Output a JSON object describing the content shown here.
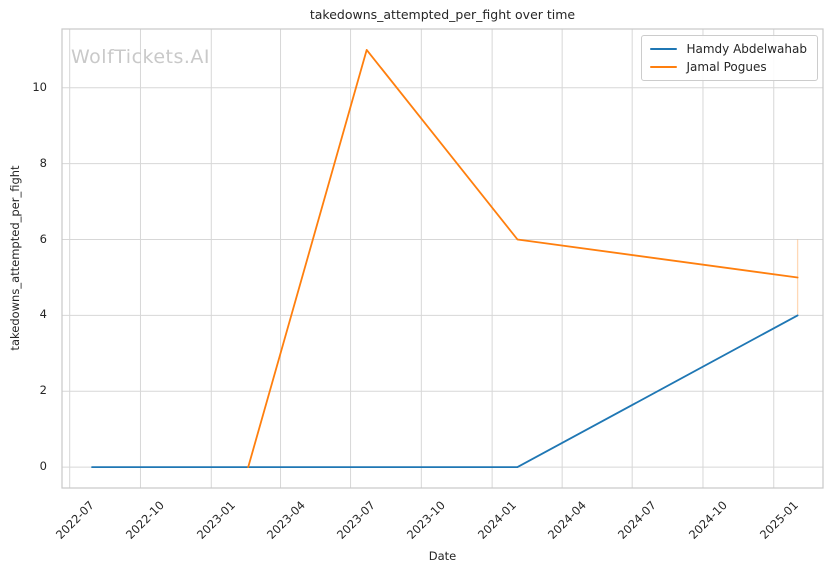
{
  "watermark": {
    "text": "WolfTickets.AI"
  },
  "chart_data": {
    "type": "line",
    "title": "takedowns_attempted_per_fight over time",
    "xlabel": "Date",
    "ylabel": "takedowns_attempted_per_fight",
    "grid": true,
    "legend_position": "top-right",
    "x_domain": [
      "2022-06-21",
      "2025-03-06"
    ],
    "ylim": [
      -0.55,
      11.55
    ],
    "y_ticks": [
      0,
      2,
      4,
      6,
      8,
      10
    ],
    "x_ticks": [
      {
        "date": "2022-07-01",
        "label": "2022-07"
      },
      {
        "date": "2022-10-01",
        "label": "2022-10"
      },
      {
        "date": "2023-01-01",
        "label": "2023-01"
      },
      {
        "date": "2023-04-01",
        "label": "2023-04"
      },
      {
        "date": "2023-07-01",
        "label": "2023-07"
      },
      {
        "date": "2023-10-01",
        "label": "2023-10"
      },
      {
        "date": "2024-01-01",
        "label": "2024-01"
      },
      {
        "date": "2024-04-01",
        "label": "2024-04"
      },
      {
        "date": "2024-07-01",
        "label": "2024-07"
      },
      {
        "date": "2024-10-01",
        "label": "2024-10"
      },
      {
        "date": "2025-01-01",
        "label": "2025-01"
      }
    ],
    "series": [
      {
        "name": "Hamdy Abdelwahab",
        "color": "#1f77b4",
        "points": [
          [
            "2022-07-30",
            0
          ],
          [
            "2024-02-03",
            0
          ],
          [
            "2025-02-01",
            4
          ]
        ]
      },
      {
        "name": "Jamal Pogues",
        "color": "#ff7f0e",
        "points": [
          [
            "2023-02-18",
            0
          ],
          [
            "2023-07-22",
            11
          ],
          [
            "2024-02-03",
            6
          ],
          [
            "2025-02-01",
            5
          ]
        ]
      }
    ],
    "error_bar": {
      "series": "Jamal Pogues",
      "date": "2025-02-01",
      "from": 4,
      "to": 6,
      "color": "rgba(255,127,14,0.3)"
    },
    "colors": {
      "grid": "#d7d7d7",
      "spine": "#c8c8c8",
      "text": "#262626",
      "watermark": "#c9c9c9",
      "background": "#ffffff"
    }
  }
}
